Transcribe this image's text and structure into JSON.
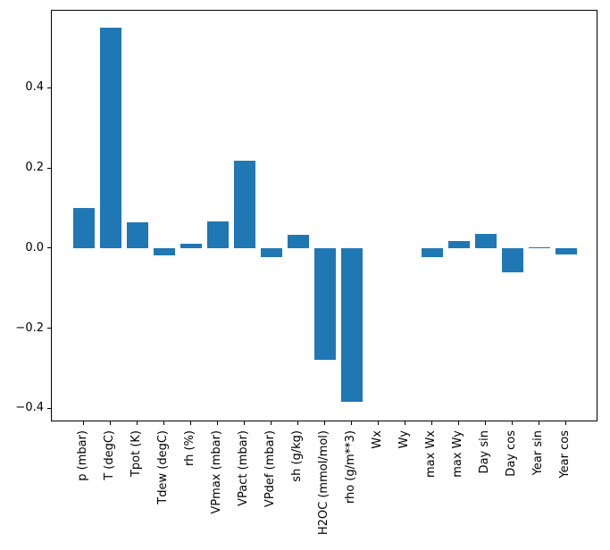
{
  "chart_data": {
    "type": "bar",
    "title": "",
    "xlabel": "",
    "ylabel": "",
    "grid": false,
    "legend": "none",
    "bar_color": "#1f77b4",
    "axis_color": "#000000",
    "background_color": "#ffffff",
    "tick_label_rotation_deg": 90,
    "ylim": [
      -0.4325,
      0.593
    ],
    "yticks": [
      0.4,
      0.2,
      0.0,
      -0.2,
      -0.4
    ],
    "ytick_labels": [
      "0.4",
      "0.2",
      "0.0",
      "−0.2",
      "−0.4"
    ],
    "categories": [
      "p (mbar)",
      "T (degC)",
      "Tpot (K)",
      "Tdew (degC)",
      "rh (%)",
      "VPmax (mbar)",
      "VPact (mbar)",
      "VPdef (mbar)",
      "sh (g/kg)",
      "H2OC (mmol/mol)",
      "rho (g/m**3)",
      "Wx",
      "Wy",
      "max Wx",
      "max Wy",
      "Day sin",
      "Day cos",
      "Year sin",
      "Year cos"
    ],
    "values": [
      0.1,
      0.551,
      0.065,
      -0.017,
      0.012,
      0.068,
      0.218,
      -0.021,
      0.033,
      -0.277,
      -0.383,
      0.0,
      0.0,
      -0.022,
      0.018,
      0.037,
      -0.06,
      0.004,
      -0.016
    ]
  }
}
